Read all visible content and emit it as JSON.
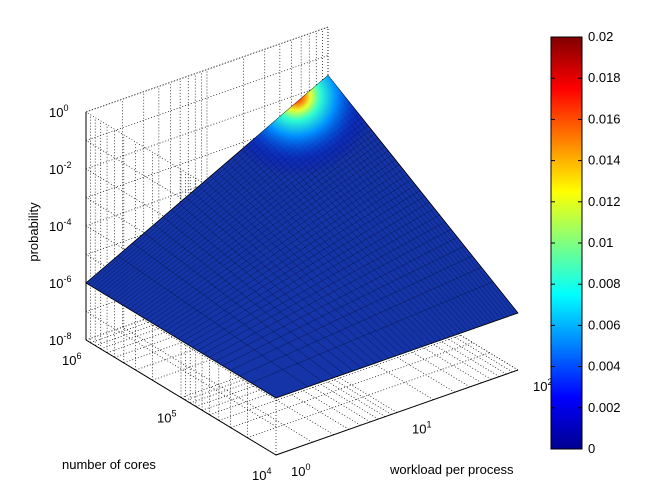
{
  "chart_data": {
    "type": "surface",
    "zlabel": "probability",
    "xlabel": "workload per process",
    "ylabel": "number of cores",
    "x_scale": "log",
    "y_scale": "log",
    "z_scale": "log",
    "grid": true,
    "x_ticks": [
      {
        "base": "10",
        "exp": "0"
      },
      {
        "base": "10",
        "exp": "1"
      },
      {
        "base": "10",
        "exp": "2"
      }
    ],
    "y_ticks": [
      {
        "base": "10",
        "exp": "4"
      },
      {
        "base": "10",
        "exp": "5"
      },
      {
        "base": "10",
        "exp": "6"
      }
    ],
    "z_ticks": [
      {
        "base": "10",
        "exp": "0"
      },
      {
        "base": "10",
        "exp": "-2"
      },
      {
        "base": "10",
        "exp": "-4"
      },
      {
        "base": "10",
        "exp": "-6"
      },
      {
        "base": "10",
        "exp": "-8"
      }
    ],
    "surface_corners": [
      {
        "workload": 1,
        "cores": 1000000,
        "probability": 1e-06
      },
      {
        "workload": 1,
        "cores": 10000,
        "probability": 1e-10
      },
      {
        "workload": 100,
        "cores": 10000,
        "probability": 1e-06
      },
      {
        "workload": 100,
        "cores": 1000000,
        "probability": 0.02
      }
    ],
    "colorbar": {
      "colormap": "jet",
      "min": 0,
      "max": 0.02,
      "ticks": [
        "0",
        "0.002",
        "0.004",
        "0.006",
        "0.008",
        "0.01",
        "0.012",
        "0.014",
        "0.016",
        "0.018",
        "0.02"
      ]
    }
  }
}
